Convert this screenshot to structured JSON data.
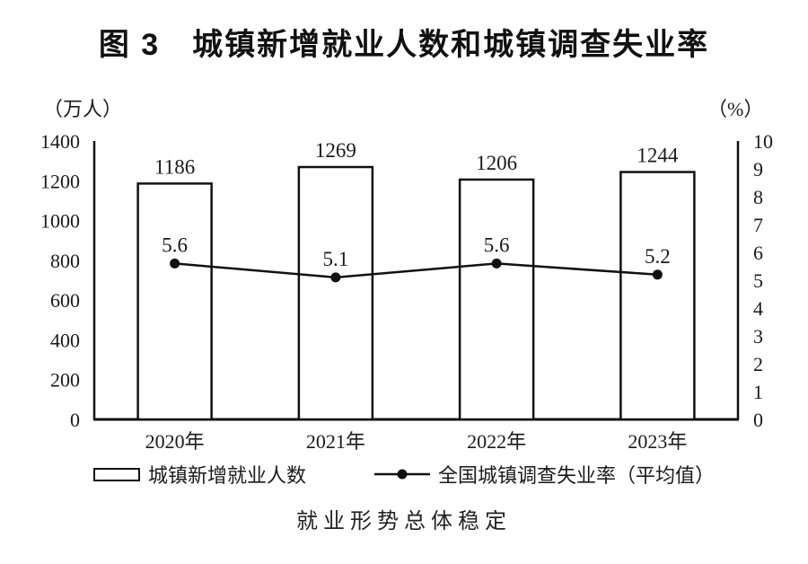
{
  "figure": {
    "title": "图 3　城镇新增就业人数和城镇调查失业率",
    "caption": "就业形势总体稳定"
  },
  "chart_data": {
    "type": "bar",
    "subtype": "bar+line combo, dual axis",
    "title": "图 3　城镇新增就业人数和城镇调查失业率",
    "categories": [
      "2020年",
      "2021年",
      "2022年",
      "2023年"
    ],
    "series": [
      {
        "name": "城镇新增就业人数",
        "type": "bar",
        "axis": "left",
        "values": [
          1186,
          1269,
          1206,
          1244
        ]
      },
      {
        "name": "全国城镇调查失业率（平均值）",
        "type": "line",
        "axis": "right",
        "values": [
          5.6,
          5.1,
          5.6,
          5.2
        ]
      }
    ],
    "left_axis": {
      "unit": "（万人）",
      "min": 0,
      "max": 1400,
      "step": 200
    },
    "right_axis": {
      "unit": "（%）",
      "min": 0,
      "max": 10,
      "step": 1
    },
    "grid": false,
    "legend_position": "bottom",
    "data_labels": true,
    "colors": {
      "bar_fill": "#ffffff",
      "stroke": "#111111",
      "text": "#1a1a1a",
      "background": "#ffffff"
    }
  }
}
